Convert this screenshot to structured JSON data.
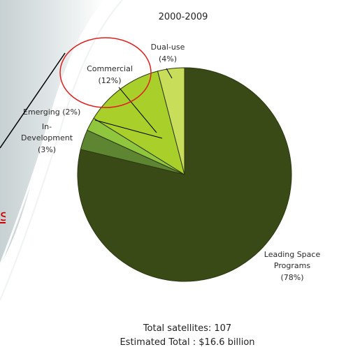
{
  "chart_data": {
    "type": "pie",
    "title": "2000-2009",
    "slices": [
      {
        "label": "Leading Space Programs",
        "pct_text": "(78%)",
        "value": 78,
        "color": "#3a4a17"
      },
      {
        "label": "In-Development",
        "pct_text": "(3%)",
        "value": 3,
        "color": "#5e8632"
      },
      {
        "label": "Emerging (2%)",
        "pct_text": "",
        "value": 2,
        "color": "#8fc63e"
      },
      {
        "label": "Commercial",
        "pct_text": "(12%)",
        "value": 12,
        "color": "#a9cf2a"
      },
      {
        "label": "Dual-use",
        "pct_text": "(4%)",
        "value": 4,
        "color": "#c8dd5a"
      }
    ],
    "footer": {
      "line1": "Total satellites: 107",
      "line2": "Estimated Total : $16.6 billion"
    }
  },
  "annotation": {
    "cut_text": "s",
    "circle_color": "#e02020",
    "line_color": "#000000"
  }
}
